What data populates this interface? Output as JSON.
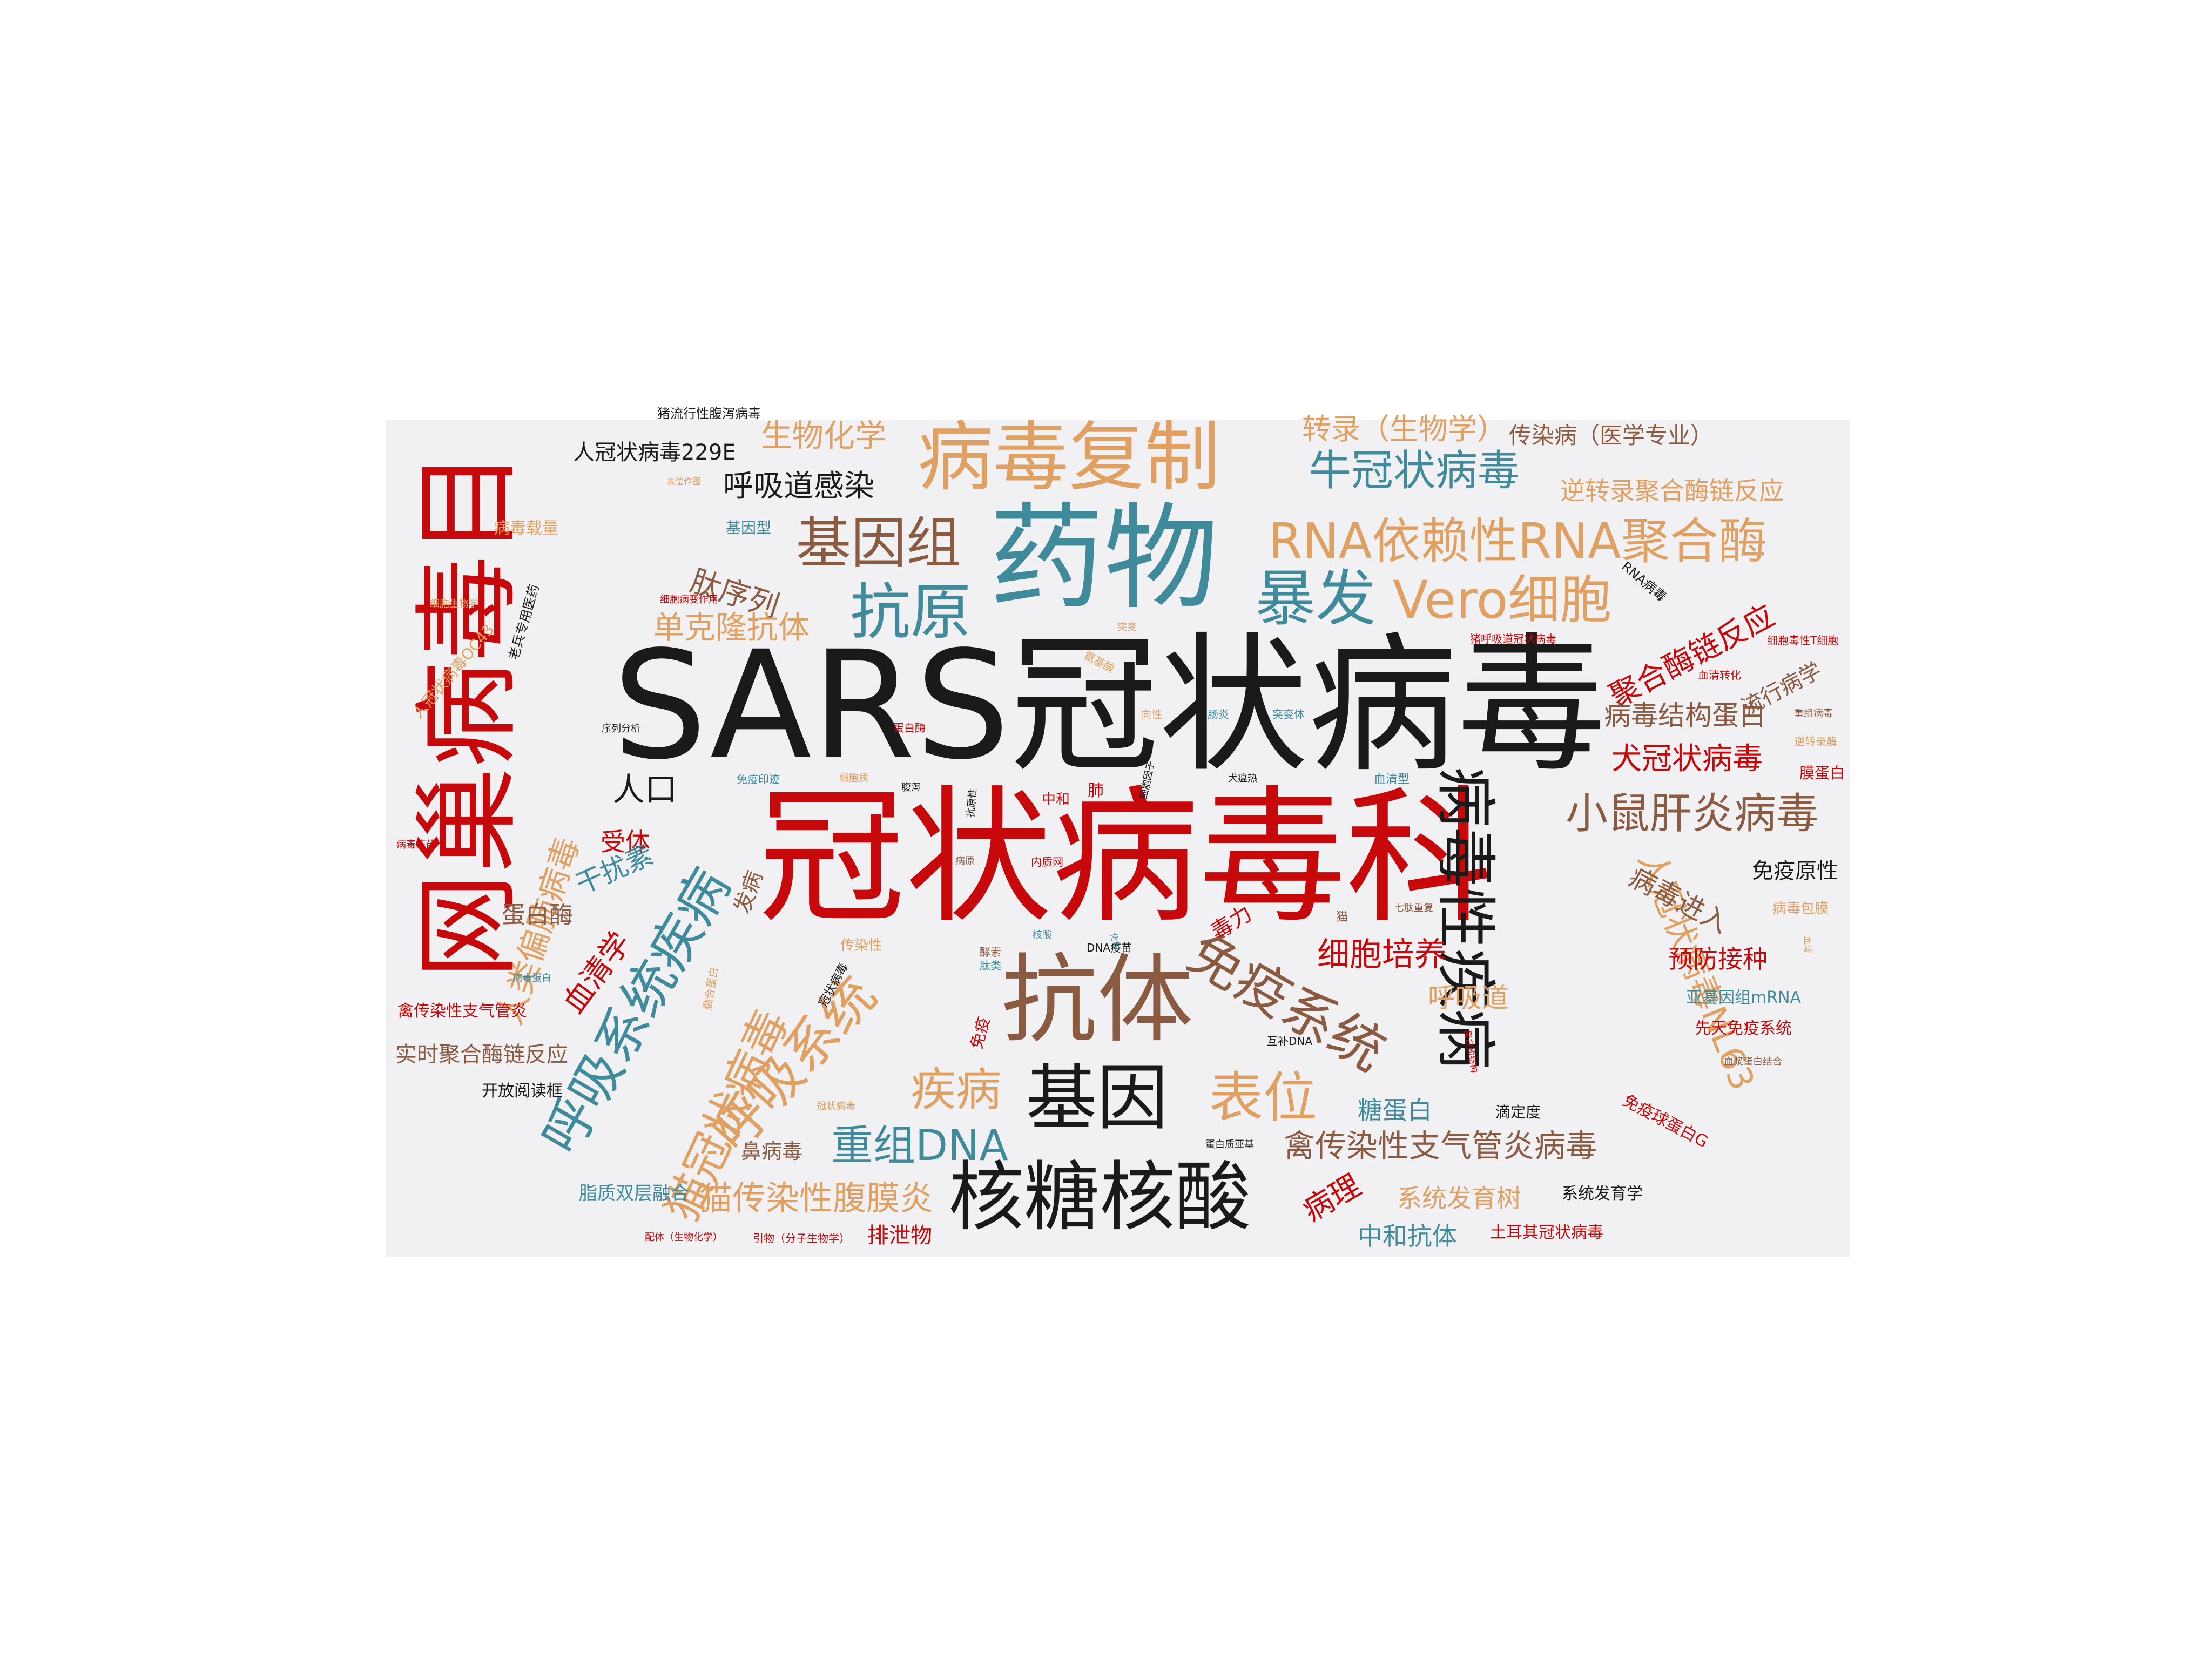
{
  "colors": {
    "red": "#c8090c",
    "black": "#1a1a1a",
    "teal": "#3f8b9b",
    "brown": "#8a5a41",
    "orange": "#e0a062",
    "bg": "#f1f1f3"
  },
  "words": [
    {
      "text": "猪流行性腹泻病毒",
      "color": "black"
    },
    {
      "text": "SARS冠状病毒",
      "color": "black"
    },
    {
      "text": "冠状病毒科",
      "color": "red"
    },
    {
      "text": "网巢病毒目",
      "color": "red"
    },
    {
      "text": "药物",
      "color": "teal"
    },
    {
      "text": "抗体",
      "color": "brown"
    },
    {
      "text": "病毒复制",
      "color": "orange"
    },
    {
      "text": "核糖核酸",
      "color": "black"
    },
    {
      "text": "基因",
      "color": "black"
    },
    {
      "text": "病毒性疾病",
      "color": "black"
    },
    {
      "text": "免疫系统",
      "color": "brown"
    },
    {
      "text": "呼吸系统疾病",
      "color": "teal"
    },
    {
      "text": "呼吸系统",
      "color": "orange"
    },
    {
      "text": "猫冠状病毒",
      "color": "orange"
    },
    {
      "text": "RNA依赖性RNA聚合酶",
      "color": "orange"
    },
    {
      "text": "基因组",
      "color": "brown"
    },
    {
      "text": "抗原",
      "color": "teal"
    },
    {
      "text": "暴发",
      "color": "teal"
    },
    {
      "text": "Vero细胞",
      "color": "orange"
    },
    {
      "text": "表位",
      "color": "orange"
    },
    {
      "text": "牛冠状病毒",
      "color": "teal"
    },
    {
      "text": "小鼠肝炎病毒",
      "color": "brown"
    },
    {
      "text": "人冠状病毒NL63",
      "color": "orange"
    },
    {
      "text": "重组DNA",
      "color": "teal"
    },
    {
      "text": "疾病",
      "color": "orange"
    },
    {
      "text": "猫传染性腹膜炎",
      "color": "orange"
    },
    {
      "text": "禽传染性支气管炎病毒",
      "color": "brown"
    },
    {
      "text": "细胞培养",
      "color": "red"
    },
    {
      "text": "人类偏肺病毒",
      "color": "orange"
    },
    {
      "text": "生物化学",
      "color": "orange"
    },
    {
      "text": "转录（生物学）",
      "color": "orange"
    },
    {
      "text": "传染病（医学专业）",
      "color": "brown"
    },
    {
      "text": "人冠状病毒229E",
      "color": "black"
    },
    {
      "text": "呼吸道感染",
      "color": "black"
    },
    {
      "text": "逆转录聚合酶链反应",
      "color": "orange"
    },
    {
      "text": "肽序列",
      "color": "brown"
    },
    {
      "text": "单克隆抗体",
      "color": "orange"
    },
    {
      "text": "聚合酶链反应",
      "color": "red"
    },
    {
      "text": "病毒结构蛋白",
      "color": "brown"
    },
    {
      "text": "犬冠状病毒",
      "color": "red"
    },
    {
      "text": "流行病学",
      "color": "brown"
    },
    {
      "text": "人口",
      "color": "black"
    },
    {
      "text": "受体",
      "color": "red"
    },
    {
      "text": "干扰素",
      "color": "teal"
    },
    {
      "text": "蛋白酶",
      "color": "brown"
    },
    {
      "text": "血清学",
      "color": "red"
    },
    {
      "text": "发病",
      "color": "brown"
    },
    {
      "text": "病毒进入",
      "color": "brown"
    },
    {
      "text": "免疫原性",
      "color": "black"
    },
    {
      "text": "预防接种",
      "color": "red"
    },
    {
      "text": "呼吸道",
      "color": "orange"
    },
    {
      "text": "糖蛋白",
      "color": "teal"
    },
    {
      "text": "病理",
      "color": "red"
    },
    {
      "text": "系统发育树",
      "color": "orange"
    },
    {
      "text": "系统发育学",
      "color": "black"
    },
    {
      "text": "中和抗体",
      "color": "teal"
    },
    {
      "text": "排泄物",
      "color": "red"
    },
    {
      "text": "鼻病毒",
      "color": "brown"
    },
    {
      "text": "脂质双层融合",
      "color": "teal"
    },
    {
      "text": "实时聚合酶链反应",
      "color": "brown"
    },
    {
      "text": "开放阅读框",
      "color": "black"
    },
    {
      "text": "禽传染性支气管炎",
      "color": "red"
    },
    {
      "text": "亚基因组mRNA",
      "color": "teal"
    },
    {
      "text": "先天免疫系统",
      "color": "red"
    },
    {
      "text": "免疫球蛋白G",
      "color": "red"
    },
    {
      "text": "土耳其冠状病毒",
      "color": "red"
    },
    {
      "text": "毒力",
      "color": "red"
    },
    {
      "text": "滴定度",
      "color": "black"
    },
    {
      "text": "病毒载量",
      "color": "orange"
    },
    {
      "text": "基因型",
      "color": "teal"
    },
    {
      "text": "人冠状病毒OC43",
      "color": "orange"
    },
    {
      "text": "老兵专用医药",
      "color": "black"
    },
    {
      "text": "RNA病毒",
      "color": "black"
    },
    {
      "text": "细胞毒性T细胞",
      "color": "red"
    },
    {
      "text": "血清转化",
      "color": "red"
    },
    {
      "text": "重组病毒",
      "color": "brown"
    },
    {
      "text": "逆转录酶",
      "color": "orange"
    },
    {
      "text": "膜蛋白",
      "color": "red"
    },
    {
      "text": "病毒包膜",
      "color": "orange"
    },
    {
      "text": "血浆蛋白结合",
      "color": "brown"
    },
    {
      "text": "配体（生物化学）",
      "color": "red"
    },
    {
      "text": "引物（分子生物学）",
      "color": "red"
    },
    {
      "text": "互补DNA",
      "color": "black"
    },
    {
      "text": "蛋白质亚基",
      "color": "black"
    },
    {
      "text": "序列分析",
      "color": "black"
    },
    {
      "text": "细胞生物学",
      "color": "orange"
    },
    {
      "text": "表位作图",
      "color": "orange"
    },
    {
      "text": "细胞病变作用",
      "color": "red"
    },
    {
      "text": "氨基酸",
      "color": "orange"
    },
    {
      "text": "突变",
      "color": "orange"
    },
    {
      "text": "肠炎",
      "color": "teal"
    },
    {
      "text": "突变体",
      "color": "teal"
    },
    {
      "text": "向性",
      "color": "orange"
    },
    {
      "text": "蛋白酶",
      "color": "red"
    },
    {
      "text": "免疫印迹",
      "color": "teal"
    },
    {
      "text": "细胞质",
      "color": "orange"
    },
    {
      "text": "腹泻",
      "color": "black"
    },
    {
      "text": "中和",
      "color": "red"
    },
    {
      "text": "肺",
      "color": "red"
    },
    {
      "text": "犬瘟热",
      "color": "black"
    },
    {
      "text": "血清型",
      "color": "teal"
    },
    {
      "text": "细胞因子",
      "color": "black"
    },
    {
      "text": "抗原性",
      "color": "black"
    },
    {
      "text": "病原",
      "color": "brown"
    },
    {
      "text": "内质网",
      "color": "red"
    },
    {
      "text": "猫",
      "color": "brown"
    },
    {
      "text": "七肽重复",
      "color": "brown"
    },
    {
      "text": "传染性",
      "color": "orange"
    },
    {
      "text": "酵素",
      "color": "brown"
    },
    {
      "text": "核酸",
      "color": "teal"
    },
    {
      "text": "DNA疫苗",
      "color": "black"
    },
    {
      "text": "肽类",
      "color": "teal"
    },
    {
      "text": "融合蛋白",
      "color": "orange"
    },
    {
      "text": "冠状病毒",
      "color": "black"
    },
    {
      "text": "免疫",
      "color": "red"
    },
    {
      "text": "冠状病毒",
      "color": "orange"
    },
    {
      "text": "病毒蛋白",
      "color": "teal"
    },
    {
      "text": "病毒疫苗",
      "color": "red"
    },
    {
      "text": "猪呼吸道冠状病毒",
      "color": "red"
    },
    {
      "text": "蛋白质结构",
      "color": "red"
    },
    {
      "text": "化学",
      "color": "teal"
    },
    {
      "text": "血清",
      "color": "orange"
    }
  ]
}
